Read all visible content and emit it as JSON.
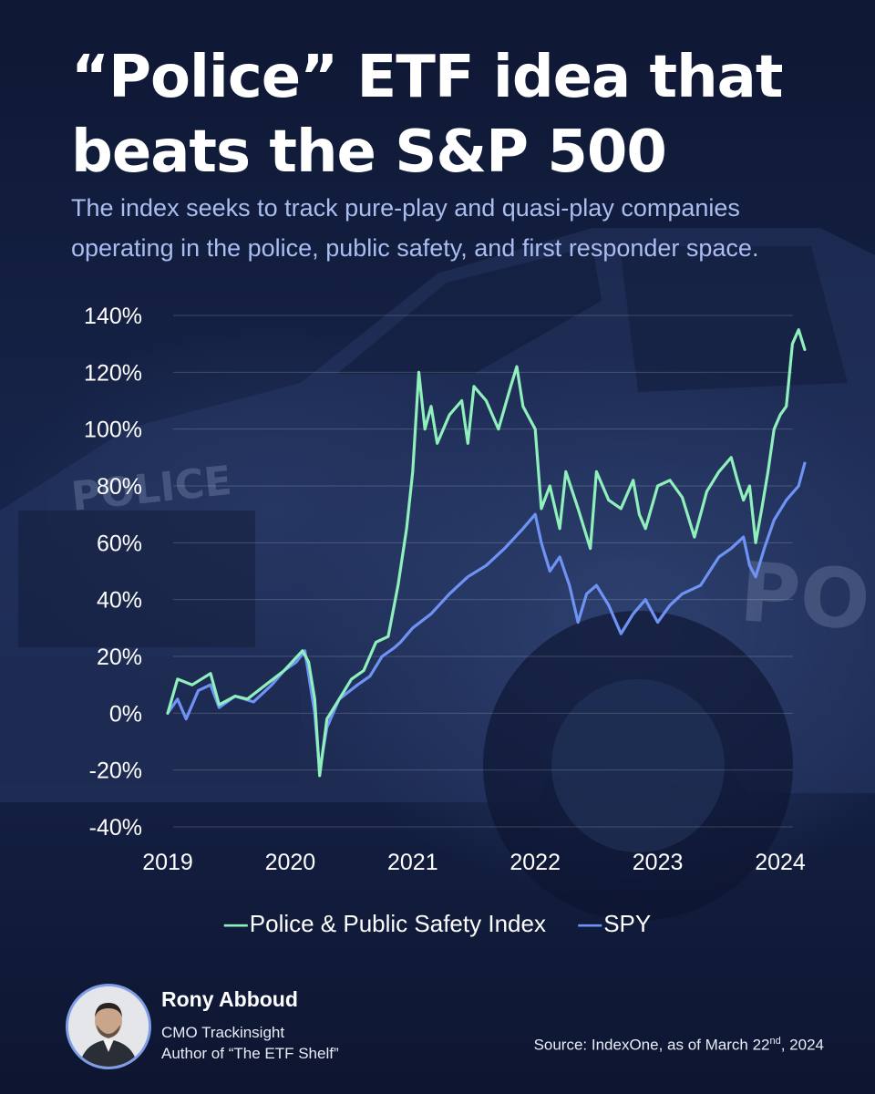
{
  "title": "“Police” ETF idea that beats the S&P 500",
  "subtitle": "The index seeks to track pure-play and quasi-play companies operating in the police, public safety, and first responder space.",
  "legend": {
    "dash": "—",
    "series1": "Police & Public Safety Index",
    "series2": "SPY"
  },
  "author": {
    "name": "Rony Abboud",
    "role": "CMO Trackinsight",
    "book": "Author of “The ETF Shelf”"
  },
  "source": {
    "prefix": "Source: IndexOne, as of March 22",
    "sup": "nd",
    "suffix": ", 2024"
  },
  "chart_data": {
    "type": "line",
    "xlim": [
      2019.0,
      2024.22
    ],
    "ylim": [
      -40,
      140
    ],
    "yticks": [
      -40,
      -20,
      0,
      20,
      40,
      60,
      80,
      100,
      120,
      140
    ],
    "ytick_labels": [
      "-40%",
      "-20%",
      "0%",
      "20%",
      "40%",
      "60%",
      "80%",
      "100%",
      "120%",
      "140%"
    ],
    "xticks": [
      2019,
      2020,
      2021,
      2022,
      2023,
      2024
    ],
    "xtick_labels": [
      "2019",
      "2020",
      "2021",
      "2022",
      "2023",
      "2024"
    ],
    "grid": "horizontal",
    "legend_position": "bottom",
    "series": [
      {
        "name": "Police & Public Safety Index",
        "color": "#8ff0bc",
        "points": [
          [
            2019.0,
            0
          ],
          [
            2019.08,
            12
          ],
          [
            2019.2,
            10
          ],
          [
            2019.35,
            14
          ],
          [
            2019.42,
            3
          ],
          [
            2019.55,
            6
          ],
          [
            2019.65,
            5
          ],
          [
            2019.8,
            10
          ],
          [
            2019.95,
            15
          ],
          [
            2020.1,
            22
          ],
          [
            2020.15,
            18
          ],
          [
            2020.2,
            5
          ],
          [
            2020.24,
            -22
          ],
          [
            2020.3,
            -2
          ],
          [
            2020.4,
            5
          ],
          [
            2020.5,
            12
          ],
          [
            2020.6,
            15
          ],
          [
            2020.7,
            25
          ],
          [
            2020.8,
            27
          ],
          [
            2020.88,
            45
          ],
          [
            2020.95,
            65
          ],
          [
            2021.0,
            85
          ],
          [
            2021.05,
            120
          ],
          [
            2021.1,
            100
          ],
          [
            2021.15,
            108
          ],
          [
            2021.2,
            95
          ],
          [
            2021.3,
            105
          ],
          [
            2021.4,
            110
          ],
          [
            2021.45,
            95
          ],
          [
            2021.5,
            115
          ],
          [
            2021.6,
            110
          ],
          [
            2021.7,
            100
          ],
          [
            2021.8,
            115
          ],
          [
            2021.85,
            122
          ],
          [
            2021.9,
            108
          ],
          [
            2022.0,
            100
          ],
          [
            2022.05,
            72
          ],
          [
            2022.12,
            80
          ],
          [
            2022.2,
            65
          ],
          [
            2022.25,
            85
          ],
          [
            2022.35,
            72
          ],
          [
            2022.45,
            58
          ],
          [
            2022.5,
            85
          ],
          [
            2022.6,
            75
          ],
          [
            2022.7,
            72
          ],
          [
            2022.8,
            82
          ],
          [
            2022.85,
            70
          ],
          [
            2022.9,
            65
          ],
          [
            2023.0,
            80
          ],
          [
            2023.1,
            82
          ],
          [
            2023.2,
            76
          ],
          [
            2023.3,
            62
          ],
          [
            2023.4,
            78
          ],
          [
            2023.5,
            85
          ],
          [
            2023.6,
            90
          ],
          [
            2023.65,
            82
          ],
          [
            2023.7,
            75
          ],
          [
            2023.75,
            80
          ],
          [
            2023.8,
            60
          ],
          [
            2023.85,
            72
          ],
          [
            2023.9,
            85
          ],
          [
            2023.95,
            100
          ],
          [
            2024.0,
            105
          ],
          [
            2024.05,
            108
          ],
          [
            2024.1,
            130
          ],
          [
            2024.15,
            135
          ],
          [
            2024.2,
            128
          ]
        ]
      },
      {
        "name": "SPY",
        "color": "#6e93f5",
        "points": [
          [
            2019.0,
            0
          ],
          [
            2019.08,
            5
          ],
          [
            2019.15,
            -2
          ],
          [
            2019.25,
            8
          ],
          [
            2019.35,
            10
          ],
          [
            2019.42,
            2
          ],
          [
            2019.55,
            6
          ],
          [
            2019.7,
            4
          ],
          [
            2019.85,
            10
          ],
          [
            2019.95,
            15
          ],
          [
            2020.05,
            18
          ],
          [
            2020.12,
            22
          ],
          [
            2020.2,
            0
          ],
          [
            2020.24,
            -20
          ],
          [
            2020.3,
            -5
          ],
          [
            2020.4,
            5
          ],
          [
            2020.55,
            10
          ],
          [
            2020.65,
            13
          ],
          [
            2020.75,
            20
          ],
          [
            2020.85,
            23
          ],
          [
            2020.9,
            25
          ],
          [
            2021.0,
            30
          ],
          [
            2021.15,
            35
          ],
          [
            2021.3,
            42
          ],
          [
            2021.45,
            48
          ],
          [
            2021.6,
            52
          ],
          [
            2021.75,
            58
          ],
          [
            2021.9,
            65
          ],
          [
            2022.0,
            70
          ],
          [
            2022.05,
            60
          ],
          [
            2022.12,
            50
          ],
          [
            2022.2,
            55
          ],
          [
            2022.28,
            45
          ],
          [
            2022.35,
            32
          ],
          [
            2022.42,
            42
          ],
          [
            2022.5,
            45
          ],
          [
            2022.6,
            38
          ],
          [
            2022.7,
            28
          ],
          [
            2022.8,
            35
          ],
          [
            2022.9,
            40
          ],
          [
            2023.0,
            32
          ],
          [
            2023.1,
            38
          ],
          [
            2023.2,
            42
          ],
          [
            2023.35,
            45
          ],
          [
            2023.5,
            55
          ],
          [
            2023.6,
            58
          ],
          [
            2023.7,
            62
          ],
          [
            2023.75,
            52
          ],
          [
            2023.8,
            48
          ],
          [
            2023.87,
            58
          ],
          [
            2023.95,
            68
          ],
          [
            2024.05,
            75
          ],
          [
            2024.15,
            80
          ],
          [
            2024.2,
            88
          ]
        ]
      }
    ]
  }
}
